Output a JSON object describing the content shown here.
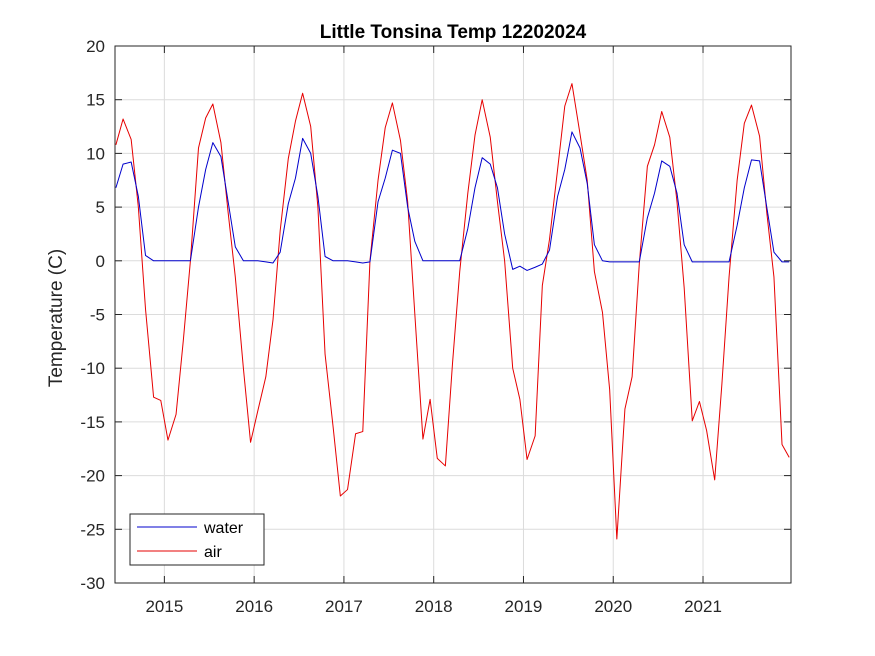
{
  "chart_data": {
    "type": "line",
    "title": "Little Tonsina Temp 12202024",
    "xlabel": "",
    "ylabel": "Temperature (C)",
    "x_tick_labels": [
      "2015",
      "2016",
      "2017",
      "2018",
      "2019",
      "2020",
      "2021"
    ],
    "x_tick_years": [
      2015,
      2016,
      2017,
      2018,
      2019,
      2020,
      2021
    ],
    "xlim": [
      2014.45,
      2021.98
    ],
    "ylim": [
      -30,
      20
    ],
    "y_ticks": [
      20,
      15,
      10,
      5,
      0,
      -5,
      -10,
      -15,
      -20,
      -25,
      -30
    ],
    "grid": true,
    "legend_position": "bottom-left",
    "series": [
      {
        "name": "water",
        "color": "#0000cc",
        "points": [
          [
            2014.46,
            6.8
          ],
          [
            2014.54,
            9.0
          ],
          [
            2014.63,
            9.2
          ],
          [
            2014.71,
            6.0
          ],
          [
            2014.79,
            0.5
          ],
          [
            2014.88,
            0.0
          ],
          [
            2014.96,
            0.0
          ],
          [
            2015.04,
            0.0
          ],
          [
            2015.13,
            0.0
          ],
          [
            2015.21,
            0.0
          ],
          [
            2015.29,
            0.0
          ],
          [
            2015.38,
            5.0
          ],
          [
            2015.46,
            8.5
          ],
          [
            2015.54,
            11.0
          ],
          [
            2015.63,
            9.7
          ],
          [
            2015.71,
            5.5
          ],
          [
            2015.79,
            1.3
          ],
          [
            2015.88,
            0.0
          ],
          [
            2015.96,
            0.0
          ],
          [
            2016.04,
            0.0
          ],
          [
            2016.13,
            -0.1
          ],
          [
            2016.21,
            -0.2
          ],
          [
            2016.29,
            0.8
          ],
          [
            2016.38,
            5.3
          ],
          [
            2016.46,
            7.7
          ],
          [
            2016.54,
            11.4
          ],
          [
            2016.63,
            10.0
          ],
          [
            2016.71,
            6.0
          ],
          [
            2016.79,
            0.4
          ],
          [
            2016.88,
            0.0
          ],
          [
            2016.96,
            0.0
          ],
          [
            2017.04,
            0.0
          ],
          [
            2017.13,
            -0.1
          ],
          [
            2017.21,
            -0.2
          ],
          [
            2017.29,
            -0.1
          ],
          [
            2017.38,
            5.5
          ],
          [
            2017.46,
            7.7
          ],
          [
            2017.54,
            10.3
          ],
          [
            2017.63,
            10.0
          ],
          [
            2017.71,
            5.0
          ],
          [
            2017.79,
            1.8
          ],
          [
            2017.88,
            0.0
          ],
          [
            2017.96,
            0.0
          ],
          [
            2018.04,
            0.0
          ],
          [
            2018.13,
            0.0
          ],
          [
            2018.21,
            0.0
          ],
          [
            2018.29,
            0.0
          ],
          [
            2018.38,
            3.0
          ],
          [
            2018.46,
            6.8
          ],
          [
            2018.54,
            9.6
          ],
          [
            2018.63,
            9.0
          ],
          [
            2018.71,
            6.8
          ],
          [
            2018.79,
            2.5
          ],
          [
            2018.88,
            -0.8
          ],
          [
            2018.96,
            -0.5
          ],
          [
            2019.04,
            -0.9
          ],
          [
            2019.13,
            -0.6
          ],
          [
            2019.21,
            -0.3
          ],
          [
            2019.29,
            1.0
          ],
          [
            2019.38,
            6.0
          ],
          [
            2019.46,
            8.5
          ],
          [
            2019.54,
            12.0
          ],
          [
            2019.63,
            10.5
          ],
          [
            2019.71,
            7.2
          ],
          [
            2019.79,
            1.5
          ],
          [
            2019.88,
            0.0
          ],
          [
            2019.96,
            -0.1
          ],
          [
            2020.04,
            -0.1
          ],
          [
            2020.13,
            -0.1
          ],
          [
            2020.21,
            -0.1
          ],
          [
            2020.29,
            -0.1
          ],
          [
            2020.38,
            4.0
          ],
          [
            2020.46,
            6.3
          ],
          [
            2020.54,
            9.3
          ],
          [
            2020.63,
            8.8
          ],
          [
            2020.71,
            6.3
          ],
          [
            2020.79,
            1.5
          ],
          [
            2020.88,
            -0.1
          ],
          [
            2020.96,
            -0.1
          ],
          [
            2021.04,
            -0.1
          ],
          [
            2021.13,
            -0.1
          ],
          [
            2021.21,
            -0.1
          ],
          [
            2021.29,
            -0.1
          ],
          [
            2021.38,
            3.3
          ],
          [
            2021.46,
            6.8
          ],
          [
            2021.54,
            9.4
          ],
          [
            2021.63,
            9.3
          ],
          [
            2021.71,
            5.0
          ],
          [
            2021.79,
            0.8
          ],
          [
            2021.88,
            -0.1
          ],
          [
            2021.96,
            -0.1
          ]
        ]
      },
      {
        "name": "air",
        "color": "#e60000",
        "points": [
          [
            2014.46,
            10.8
          ],
          [
            2014.54,
            13.2
          ],
          [
            2014.63,
            11.3
          ],
          [
            2014.71,
            5.0
          ],
          [
            2014.79,
            -4.5
          ],
          [
            2014.88,
            -12.7
          ],
          [
            2014.96,
            -13.0
          ],
          [
            2015.04,
            -16.7
          ],
          [
            2015.13,
            -14.3
          ],
          [
            2015.21,
            -7.5
          ],
          [
            2015.29,
            0.0
          ],
          [
            2015.38,
            10.5
          ],
          [
            2015.46,
            13.3
          ],
          [
            2015.54,
            14.6
          ],
          [
            2015.63,
            11.0
          ],
          [
            2015.71,
            4.5
          ],
          [
            2015.79,
            -1.5
          ],
          [
            2015.88,
            -10.0
          ],
          [
            2015.96,
            -16.9
          ],
          [
            2016.04,
            -14.0
          ],
          [
            2016.13,
            -10.8
          ],
          [
            2016.21,
            -5.5
          ],
          [
            2016.29,
            2.8
          ],
          [
            2016.38,
            9.5
          ],
          [
            2016.46,
            13.0
          ],
          [
            2016.54,
            15.6
          ],
          [
            2016.63,
            12.5
          ],
          [
            2016.71,
            5.0
          ],
          [
            2016.79,
            -8.7
          ],
          [
            2016.88,
            -15.5
          ],
          [
            2016.96,
            -21.9
          ],
          [
            2017.04,
            -21.3
          ],
          [
            2017.13,
            -16.1
          ],
          [
            2017.21,
            -15.9
          ],
          [
            2017.29,
            0.0
          ],
          [
            2017.38,
            7.5
          ],
          [
            2017.46,
            12.4
          ],
          [
            2017.54,
            14.7
          ],
          [
            2017.63,
            11.2
          ],
          [
            2017.71,
            5.5
          ],
          [
            2017.79,
            -5.0
          ],
          [
            2017.88,
            -16.6
          ],
          [
            2017.96,
            -12.9
          ],
          [
            2018.04,
            -18.4
          ],
          [
            2018.13,
            -19.1
          ],
          [
            2018.21,
            -9.5
          ],
          [
            2018.29,
            -1.0
          ],
          [
            2018.38,
            6.3
          ],
          [
            2018.46,
            11.7
          ],
          [
            2018.54,
            15.0
          ],
          [
            2018.63,
            11.5
          ],
          [
            2018.71,
            5.5
          ],
          [
            2018.79,
            0.0
          ],
          [
            2018.88,
            -10.0
          ],
          [
            2018.96,
            -12.9
          ],
          [
            2019.04,
            -18.5
          ],
          [
            2019.13,
            -16.3
          ],
          [
            2019.21,
            -2.3
          ],
          [
            2019.29,
            2.0
          ],
          [
            2019.38,
            8.5
          ],
          [
            2019.46,
            14.4
          ],
          [
            2019.54,
            16.5
          ],
          [
            2019.63,
            11.8
          ],
          [
            2019.71,
            7.5
          ],
          [
            2019.79,
            -1.0
          ],
          [
            2019.88,
            -4.8
          ],
          [
            2019.96,
            -12.0
          ],
          [
            2020.04,
            -25.9
          ],
          [
            2020.13,
            -13.8
          ],
          [
            2020.21,
            -10.8
          ],
          [
            2020.29,
            -0.3
          ],
          [
            2020.38,
            8.8
          ],
          [
            2020.46,
            10.8
          ],
          [
            2020.54,
            13.9
          ],
          [
            2020.63,
            11.5
          ],
          [
            2020.71,
            5.5
          ],
          [
            2020.79,
            -2.5
          ],
          [
            2020.88,
            -14.9
          ],
          [
            2020.96,
            -13.1
          ],
          [
            2021.04,
            -15.8
          ],
          [
            2021.13,
            -20.4
          ],
          [
            2021.21,
            -11.5
          ],
          [
            2021.29,
            -1.5
          ],
          [
            2021.38,
            7.5
          ],
          [
            2021.46,
            12.8
          ],
          [
            2021.54,
            14.5
          ],
          [
            2021.63,
            11.6
          ],
          [
            2021.71,
            4.5
          ],
          [
            2021.79,
            -1.5
          ],
          [
            2021.88,
            -17.1
          ],
          [
            2021.96,
            -18.3
          ]
        ]
      }
    ]
  }
}
